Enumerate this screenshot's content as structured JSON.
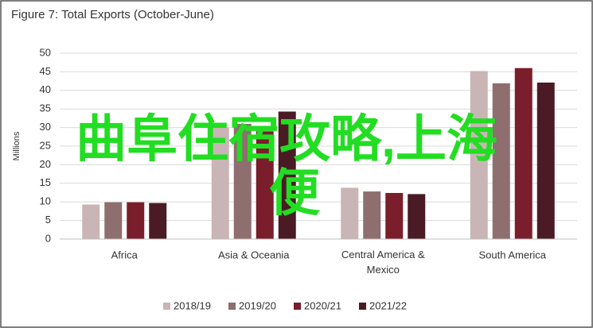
{
  "chart_data": {
    "type": "bar",
    "title": "Figure 7: Total Exports (October-June)",
    "y_label": "Millions",
    "categories": [
      "Africa",
      "Asia & Oceania",
      "Central America & Mexico",
      "South America"
    ],
    "series": [
      {
        "name": "2018/19",
        "color": "#c9b5b5",
        "values": [
          9.3,
          30,
          13.8,
          45.2
        ]
      },
      {
        "name": "2019/20",
        "color": "#8e6e6e",
        "values": [
          9.9,
          31,
          12.8,
          41.9
        ]
      },
      {
        "name": "2020/21",
        "color": "#7a1e2c",
        "values": [
          9.9,
          29,
          12.4,
          46
        ]
      },
      {
        "name": "2021/22",
        "color": "#4a1b24",
        "values": [
          9.7,
          34.3,
          12.1,
          42.1
        ]
      }
    ],
    "ylim": [
      0,
      50
    ],
    "yticks": [
      0,
      5,
      10,
      15,
      20,
      25,
      30,
      35,
      40,
      45,
      50
    ],
    "grid": true,
    "legend": "bottom",
    "annotation": [
      "曲阜住宿攻略,上海",
      "便"
    ],
    "annotation_color": "#22dd22"
  }
}
